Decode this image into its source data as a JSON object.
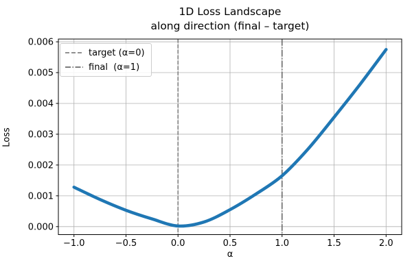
{
  "figure": {
    "title_line1": "1D Loss Landscape",
    "title_line2": "along direction (final – target)"
  },
  "legend": {
    "entries": [
      {
        "label": "target (α=0)",
        "style": "dashed",
        "color": "#808080"
      },
      {
        "label": "final  (α=1)",
        "style": "dashdot",
        "color": "#696969"
      }
    ]
  },
  "chart_data": {
    "type": "line",
    "title": "1D Loss Landscape\nalong direction (final – target)",
    "xlabel": "α",
    "ylabel": "Loss",
    "grid": true,
    "legend_position": "upper left",
    "xlim": [
      -1.15,
      2.15
    ],
    "ylim": [
      -0.00026,
      0.00609
    ],
    "xticks": {
      "values": [
        -1.0,
        -0.5,
        0.0,
        0.5,
        1.0,
        1.5,
        2.0
      ],
      "labels": [
        "−1.0",
        "−0.5",
        "0.0",
        "0.5",
        "1.0",
        "1.5",
        "2.0"
      ]
    },
    "yticks": {
      "values": [
        0.0,
        0.001,
        0.002,
        0.003,
        0.004,
        0.005,
        0.006
      ],
      "labels": [
        "0.000",
        "0.001",
        "0.002",
        "0.003",
        "0.004",
        "0.005",
        "0.006"
      ]
    },
    "series": [
      {
        "name": "loss-curve",
        "color": "#1f77b4",
        "linewidth": 4.5,
        "x": [
          -1.0,
          -0.75,
          -0.5,
          -0.25,
          0.0,
          0.25,
          0.5,
          0.75,
          1.0,
          1.25,
          1.5,
          1.75,
          2.0
        ],
        "y": [
          0.00128,
          0.00088,
          0.00053,
          0.00025,
          2e-05,
          0.00015,
          0.00055,
          0.00106,
          0.00165,
          0.00252,
          0.00355,
          0.00462,
          0.00575
        ]
      }
    ],
    "vlines": [
      {
        "x": 0.0,
        "style": "dashed",
        "color": "#808080",
        "linewidth": 1.6,
        "label": "target (α=0)"
      },
      {
        "x": 1.0,
        "style": "dashdot",
        "color": "#696969",
        "linewidth": 1.6,
        "label": "final  (α=1)"
      }
    ],
    "colors": {
      "grid": "#b0b0b0",
      "spine": "#000000",
      "tick_text": "#000000"
    }
  }
}
